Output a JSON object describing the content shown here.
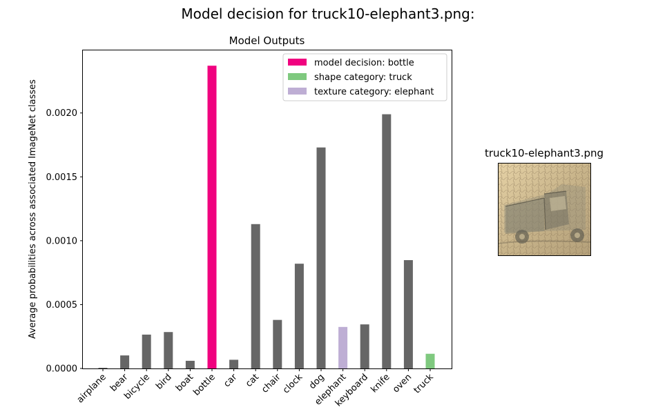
{
  "figure": {
    "suptitle": "Model decision for truck10-elephant3.png:",
    "image_title": "truck10-elephant3.png"
  },
  "colors": {
    "default_bar": "#666666",
    "decision": "#f0027f",
    "shape": "#7fc97f",
    "texture": "#beaed4"
  },
  "chart_data": {
    "type": "bar",
    "title": "Model Outputs",
    "xlabel": "",
    "ylabel": "Average probabilities across associated ImageNet classes",
    "categories": [
      "airplane",
      "bear",
      "bicycle",
      "bird",
      "boat",
      "bottle",
      "car",
      "cat",
      "chair",
      "clock",
      "dog",
      "elephant",
      "keyboard",
      "knife",
      "oven",
      "truck"
    ],
    "values": [
      5e-06,
      0.000102,
      0.000265,
      0.000285,
      6e-05,
      0.00237,
      6.8e-05,
      0.00113,
      0.00038,
      0.00082,
      0.00173,
      0.000325,
      0.000345,
      0.00199,
      0.000848,
      0.000115
    ],
    "bar_roles": [
      "default",
      "default",
      "default",
      "default",
      "default",
      "decision",
      "default",
      "default",
      "default",
      "default",
      "default",
      "texture",
      "default",
      "default",
      "default",
      "shape"
    ],
    "ylim": [
      0,
      0.00249
    ],
    "yticks": [
      0,
      0.0005,
      0.001,
      0.0015,
      0.002
    ],
    "ytick_labels": [
      "0.0000",
      "0.0005",
      "0.0010",
      "0.0015",
      "0.0020"
    ],
    "grid": false,
    "legend_position": "top-right",
    "legend": [
      {
        "label": "model decision: bottle",
        "role": "decision"
      },
      {
        "label": "shape category: truck",
        "role": "shape"
      },
      {
        "label": "texture category: elephant",
        "role": "texture"
      }
    ]
  }
}
